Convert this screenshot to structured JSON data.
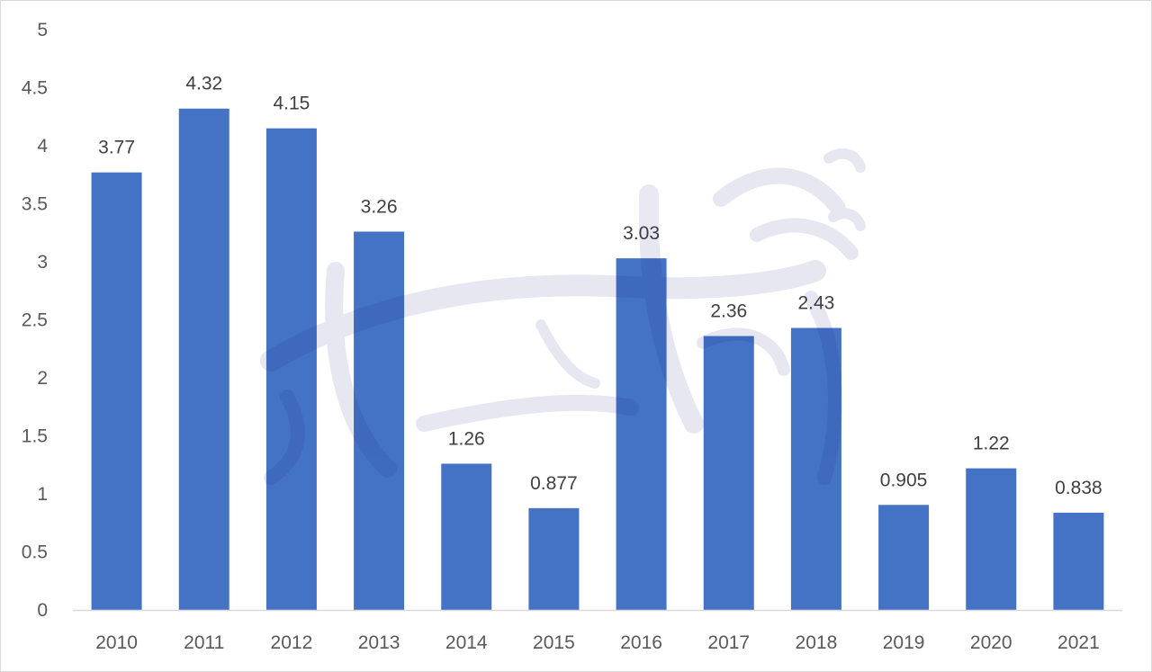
{
  "chart_data": {
    "type": "bar",
    "title": "",
    "xlabel": "",
    "ylabel": "",
    "categories": [
      "2010",
      "2011",
      "2012",
      "2013",
      "2014",
      "2015",
      "2016",
      "2017",
      "2018",
      "2019",
      "2020",
      "2021"
    ],
    "values": [
      3.77,
      4.32,
      4.15,
      3.26,
      1.26,
      0.877,
      3.03,
      2.36,
      2.43,
      0.905,
      1.22,
      0.838
    ],
    "data_labels": [
      "3.77",
      "4.32",
      "4.15",
      "3.26",
      "1.26",
      "0.877",
      "3.03",
      "2.36",
      "2.43",
      "0.905",
      "1.22",
      "0.838"
    ],
    "ylim": [
      0,
      5
    ],
    "y_ticks": [
      "0",
      "0.5",
      "1",
      "1.5",
      "2",
      "2.5",
      "3",
      "3.5",
      "4",
      "4.5",
      "5"
    ],
    "grid": false,
    "legend": "none",
    "colors": {
      "bar": "#4472c4",
      "axis": "#d9d9d9",
      "watermark": "#1a237e"
    }
  },
  "watermark": {
    "icon": "calligraphy-logo-watermark",
    "text": "اقتصاد"
  }
}
